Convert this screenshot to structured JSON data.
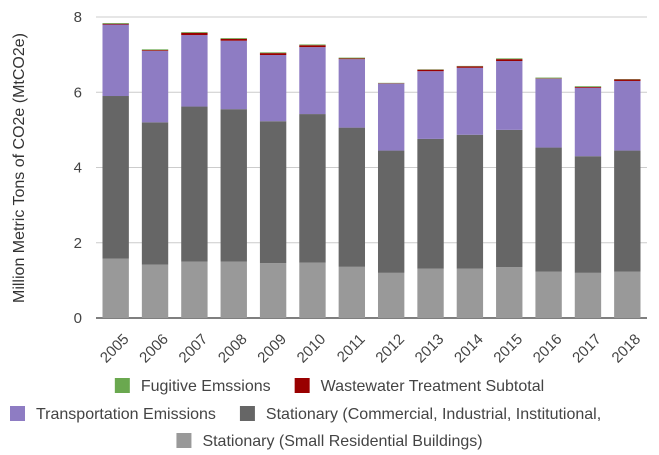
{
  "chart_data": {
    "type": "bar",
    "stacked": true,
    "ylabel": "Million Metric Tons of CO2e (MtCO2e)",
    "xlabel": "",
    "ylim": [
      0,
      8
    ],
    "yticks": [
      0,
      2,
      4,
      6,
      8
    ],
    "grid": "horizontal",
    "legend_position": "bottom",
    "categories": [
      "2005",
      "2006",
      "2007",
      "2008",
      "2009",
      "2010",
      "2011",
      "2012",
      "2013",
      "2014",
      "2015",
      "2016",
      "2017",
      "2018"
    ],
    "series": [
      {
        "name": "Stationary (Small Residential Buildings)",
        "color": "#999999",
        "values": [
          1.58,
          1.42,
          1.5,
          1.5,
          1.46,
          1.47,
          1.36,
          1.2,
          1.31,
          1.31,
          1.35,
          1.23,
          1.2,
          1.23
        ]
      },
      {
        "name": "Stationary (Commercial, Industrial, Institutional,",
        "color": "#666666",
        "values": [
          4.32,
          3.78,
          4.12,
          4.05,
          3.77,
          3.95,
          3.7,
          3.25,
          3.45,
          3.56,
          3.65,
          3.3,
          3.1,
          3.22
        ]
      },
      {
        "name": "Transportation Emissions",
        "color": "#8e7cc3",
        "values": [
          1.9,
          1.9,
          1.9,
          1.82,
          1.76,
          1.78,
          1.82,
          1.78,
          1.8,
          1.78,
          1.83,
          1.83,
          1.82,
          1.85
        ]
      },
      {
        "name": "Wastewater Treatment Subtotal",
        "color": "#990000",
        "values": [
          0.02,
          0.02,
          0.06,
          0.05,
          0.05,
          0.05,
          0.02,
          0.01,
          0.04,
          0.04,
          0.05,
          0.01,
          0.02,
          0.04
        ]
      },
      {
        "name": "Fugitive Emssions",
        "color": "#6aa84f",
        "values": [
          0.02,
          0.02,
          0.02,
          0.02,
          0.02,
          0.02,
          0.02,
          0.01,
          0.01,
          0.01,
          0.02,
          0.02,
          0.02,
          0.01
        ]
      }
    ],
    "legend_order": [
      4,
      3,
      2,
      1,
      0
    ]
  }
}
